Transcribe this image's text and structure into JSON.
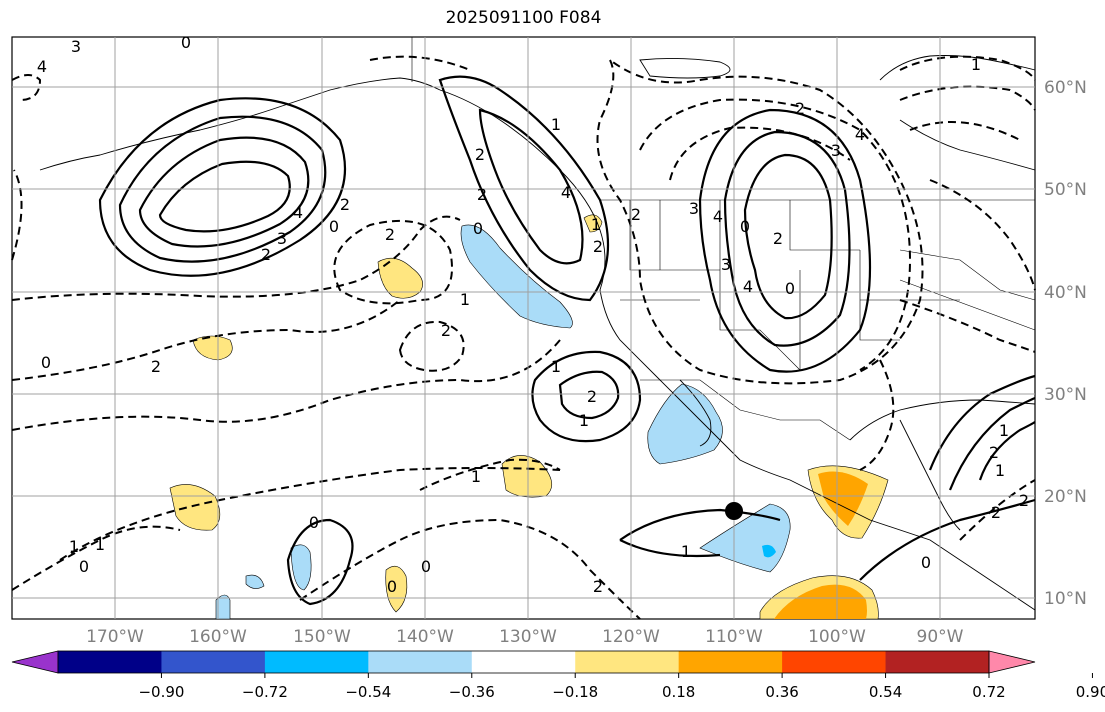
{
  "title": "2025091100 F084",
  "lat_labels": [
    "60°N",
    "50°N",
    "40°N",
    "30°N",
    "20°N",
    "10°N"
  ],
  "lon_labels": [
    "170°W",
    "160°W",
    "150°W",
    "140°W",
    "130°W",
    "120°W",
    "110°W",
    "100°W",
    "90°W"
  ],
  "colorbar": {
    "tick_labels": [
      "−0.90",
      "−0.72",
      "−0.54",
      "−0.36",
      "−0.18",
      "0.18",
      "0.36",
      "0.54",
      "0.72",
      "0.90"
    ],
    "colors": [
      "#9933cc",
      "#000088",
      "#3355cc",
      "#00bbff",
      "#aadcf8",
      "#ffffff",
      "#ffe680",
      "#ffa500",
      "#ff4500",
      "#b22222",
      "#ff88aa"
    ]
  },
  "contour_labels": [
    "3",
    "4",
    "0",
    "2",
    "3",
    "4",
    "2",
    "0",
    "2",
    "2",
    "1",
    "2",
    "4",
    "0",
    "1",
    "2",
    "3",
    "4",
    "0",
    "2",
    "3",
    "4",
    "0",
    "2",
    "3",
    "4",
    "2",
    "1",
    "2",
    "0",
    "2",
    "1",
    "2",
    "1",
    "1",
    "2",
    "0",
    "1",
    "1",
    "1",
    "0",
    "0",
    "0",
    "1",
    "2",
    "1",
    "2",
    "2",
    "0",
    "1"
  ],
  "marker": "filled-dot"
}
